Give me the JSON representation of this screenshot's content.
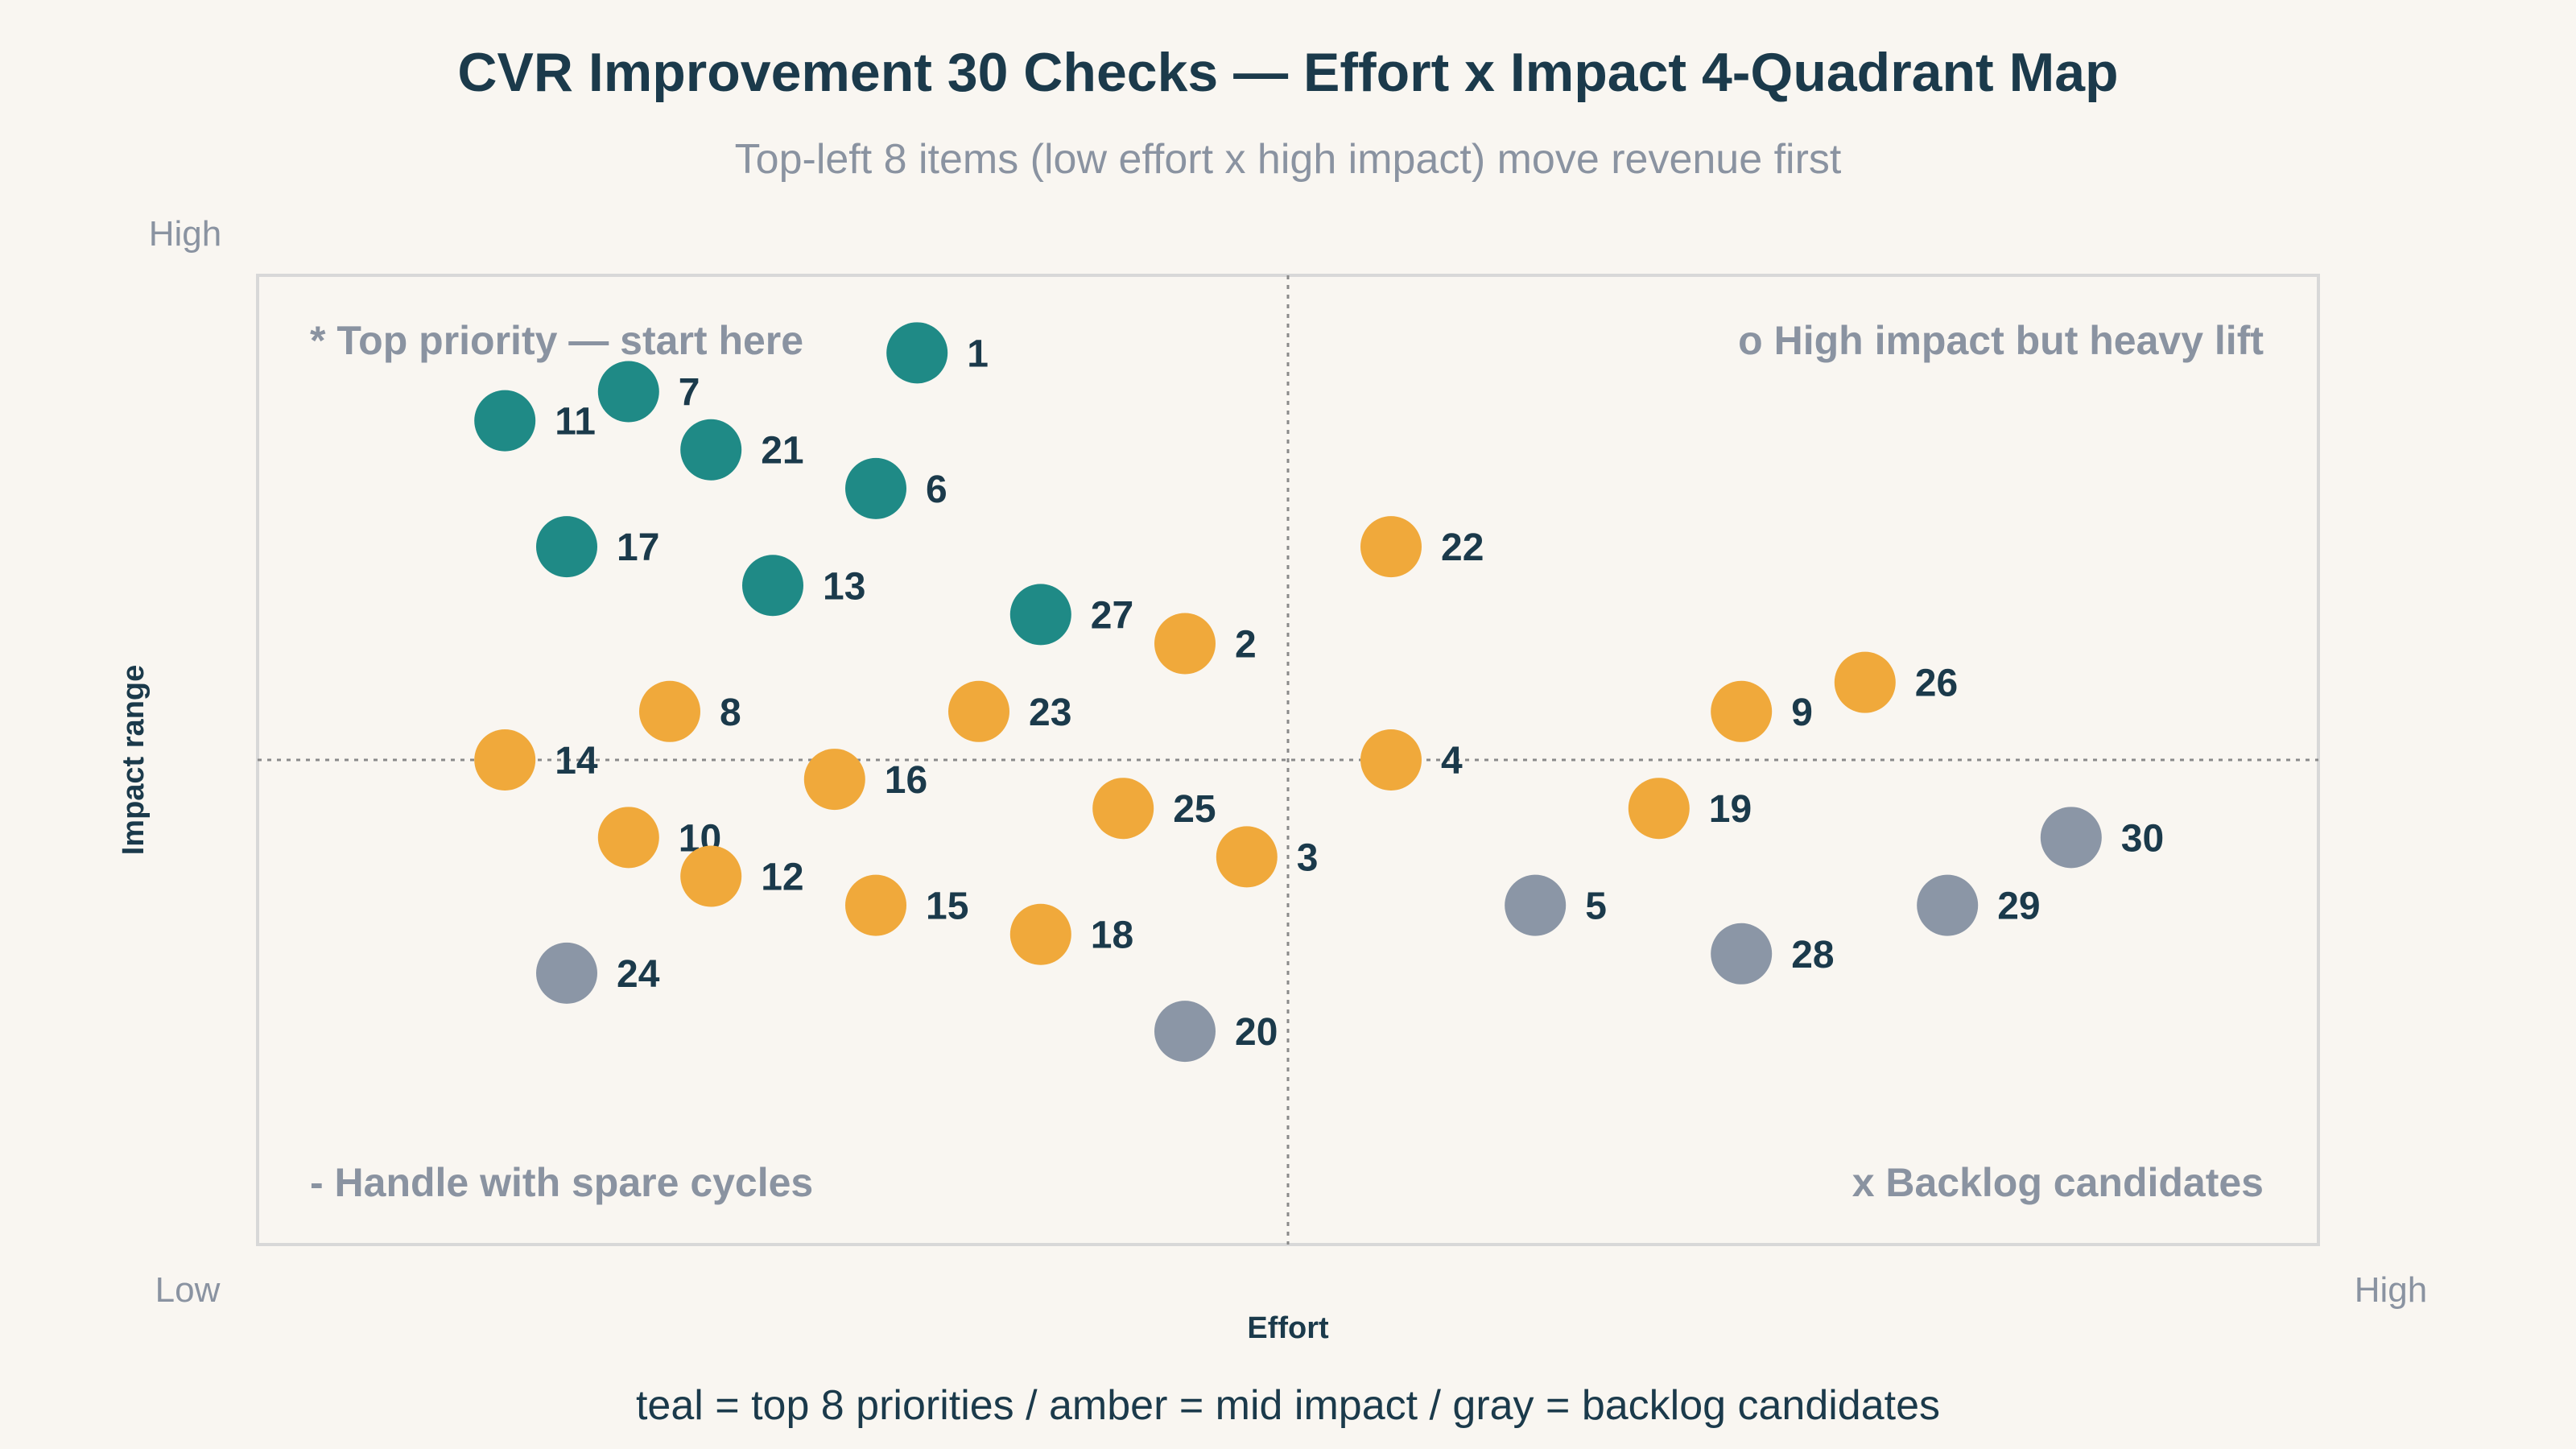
{
  "chart_data": {
    "type": "scatter",
    "title": "CVR Improvement 30 Checks — Effort x Impact 4-Quadrant Map",
    "subtitle": "Top-left 8 items (low effort x high impact) move revenue first",
    "xlabel": "Effort",
    "ylabel": "Impact range",
    "x_range_labels": {
      "low": "Low",
      "high": "High"
    },
    "y_range_labels": {
      "high": "High"
    },
    "xlim": [
      0,
      10
    ],
    "ylim": [
      0,
      10
    ],
    "quadrant_split": {
      "x": 5,
      "y": 5
    },
    "gridlines": "quadrant dividers (dotted)",
    "quadrant_labels": {
      "top_left": "* Top priority — start here",
      "top_right": "o High impact but heavy lift",
      "bottom_left": "- Handle with spare cycles",
      "bottom_right": "x Backlog candidates"
    },
    "colors": {
      "teal": "#1f8a86",
      "amber": "#f0a93b",
      "gray": "#8b96a6",
      "text": "#1b3a4b",
      "muted": "#8a93a1",
      "frame": "#d8d8d8",
      "background": "#f9f6f1"
    },
    "points": [
      {
        "id": "1",
        "x": 3.2,
        "y": 9.2,
        "group": "teal"
      },
      {
        "id": "2",
        "x": 4.5,
        "y": 6.2,
        "group": "amber"
      },
      {
        "id": "3",
        "x": 4.8,
        "y": 4.0,
        "group": "amber"
      },
      {
        "id": "4",
        "x": 5.5,
        "y": 5.0,
        "group": "amber"
      },
      {
        "id": "5",
        "x": 6.2,
        "y": 3.5,
        "group": "gray"
      },
      {
        "id": "6",
        "x": 3.0,
        "y": 7.8,
        "group": "teal"
      },
      {
        "id": "7",
        "x": 1.8,
        "y": 8.8,
        "group": "teal"
      },
      {
        "id": "8",
        "x": 2.0,
        "y": 5.5,
        "group": "amber"
      },
      {
        "id": "9",
        "x": 7.2,
        "y": 5.5,
        "group": "amber"
      },
      {
        "id": "10",
        "x": 1.8,
        "y": 4.2,
        "group": "amber"
      },
      {
        "id": "11",
        "x": 1.2,
        "y": 8.5,
        "group": "teal"
      },
      {
        "id": "12",
        "x": 2.2,
        "y": 3.8,
        "group": "amber"
      },
      {
        "id": "13",
        "x": 2.5,
        "y": 6.8,
        "group": "teal"
      },
      {
        "id": "14",
        "x": 1.2,
        "y": 5.0,
        "group": "amber"
      },
      {
        "id": "15",
        "x": 3.0,
        "y": 3.5,
        "group": "amber"
      },
      {
        "id": "16",
        "x": 2.8,
        "y": 4.8,
        "group": "amber"
      },
      {
        "id": "17",
        "x": 1.5,
        "y": 7.2,
        "group": "teal"
      },
      {
        "id": "18",
        "x": 3.8,
        "y": 3.2,
        "group": "amber"
      },
      {
        "id": "19",
        "x": 6.8,
        "y": 4.5,
        "group": "amber"
      },
      {
        "id": "20",
        "x": 4.5,
        "y": 2.2,
        "group": "gray"
      },
      {
        "id": "21",
        "x": 2.2,
        "y": 8.2,
        "group": "teal"
      },
      {
        "id": "22",
        "x": 5.5,
        "y": 7.2,
        "group": "amber"
      },
      {
        "id": "23",
        "x": 3.5,
        "y": 5.5,
        "group": "amber"
      },
      {
        "id": "24",
        "x": 1.5,
        "y": 2.8,
        "group": "gray"
      },
      {
        "id": "25",
        "x": 4.2,
        "y": 4.5,
        "group": "amber"
      },
      {
        "id": "26",
        "x": 7.8,
        "y": 5.8,
        "group": "amber"
      },
      {
        "id": "27",
        "x": 3.8,
        "y": 6.5,
        "group": "teal"
      },
      {
        "id": "28",
        "x": 7.2,
        "y": 3.0,
        "group": "gray"
      },
      {
        "id": "29",
        "x": 8.2,
        "y": 3.5,
        "group": "gray"
      },
      {
        "id": "30",
        "x": 8.8,
        "y": 4.2,
        "group": "gray"
      }
    ]
  },
  "legend_text": "teal = top 8 priorities / amber = mid impact / gray = backlog candidates"
}
